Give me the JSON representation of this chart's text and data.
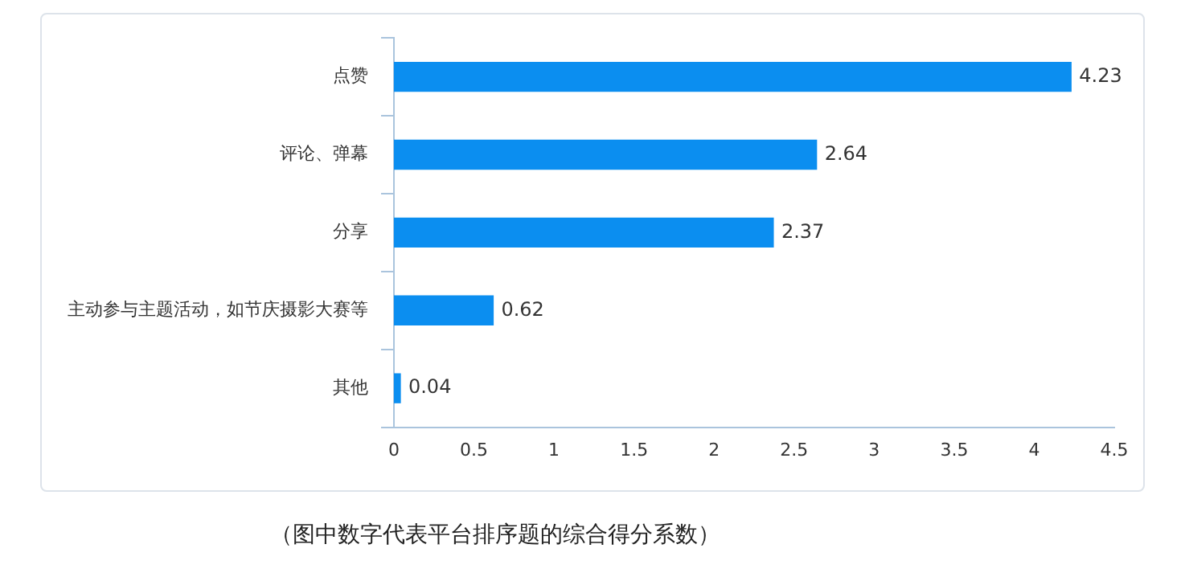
{
  "chart_data": {
    "type": "bar",
    "orientation": "horizontal",
    "categories": [
      "点赞",
      "评论、弹幕",
      "分享",
      "主动参与主题活动，如节庆摄影大赛等",
      "其他"
    ],
    "values": [
      4.23,
      2.64,
      2.37,
      0.62,
      0.04
    ],
    "color": "#0b8ef0",
    "xlim": [
      0,
      4.5
    ],
    "xticks": [
      0,
      0.5,
      1,
      1.5,
      2,
      2.5,
      3,
      3.5,
      4,
      4.5
    ],
    "data_labels": true,
    "grid": false,
    "legend": false,
    "annotations": [
      "（图中数字代表平台排序题的综合得分系数）"
    ]
  }
}
